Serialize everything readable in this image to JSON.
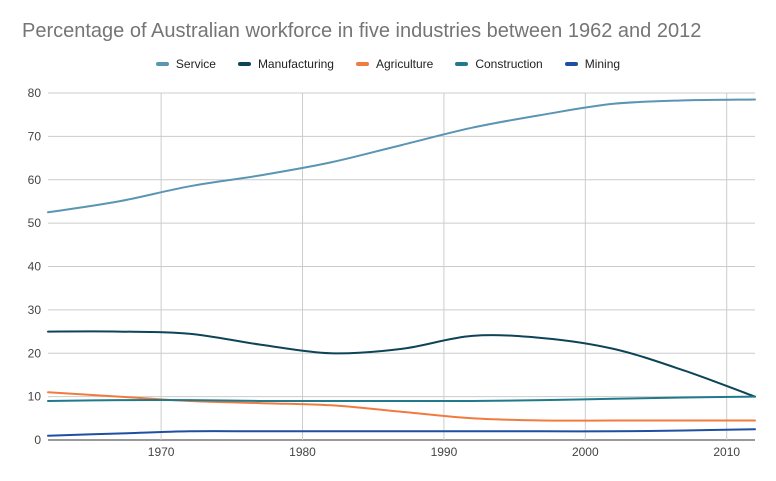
{
  "chart_data": {
    "type": "line",
    "title": "Percentage of Australian workforce in five industries between 1962 and 2012",
    "xlabel": "",
    "ylabel": "",
    "xlim": [
      1962,
      2012
    ],
    "ylim": [
      0,
      80
    ],
    "x_ticks": [
      "1970",
      "1980",
      "1990",
      "2000",
      "2010"
    ],
    "y_ticks": [
      "0",
      "10",
      "20",
      "30",
      "40",
      "50",
      "60",
      "70",
      "80"
    ],
    "grid": true,
    "legend_position": "top",
    "x": [
      1962,
      1967,
      1972,
      1977,
      1982,
      1987,
      1992,
      1997,
      2002,
      2007,
      2012
    ],
    "series": [
      {
        "name": "Service",
        "color": "#5b95b4",
        "values": [
          52.5,
          55,
          58.5,
          61,
          64,
          68,
          72,
          75,
          77.5,
          78.3,
          78.5
        ]
      },
      {
        "name": "Manufacturing",
        "color": "#0e4457",
        "values": [
          25,
          25,
          24.5,
          22,
          20,
          21,
          24,
          23.5,
          21,
          16,
          10
        ]
      },
      {
        "name": "Agriculture",
        "color": "#f07b3f",
        "values": [
          11,
          10,
          9,
          8.5,
          8,
          6.5,
          5,
          4.5,
          4.5,
          4.5,
          4.5
        ]
      },
      {
        "name": "Construction",
        "color": "#207a8c",
        "values": [
          9,
          9.2,
          9.2,
          9,
          9,
          9,
          9,
          9.2,
          9.5,
          9.8,
          10
        ]
      },
      {
        "name": "Mining",
        "color": "#1f4fa0",
        "values": [
          1,
          1.5,
          2,
          2,
          2,
          2,
          2,
          2,
          2,
          2.2,
          2.5
        ]
      }
    ]
  }
}
